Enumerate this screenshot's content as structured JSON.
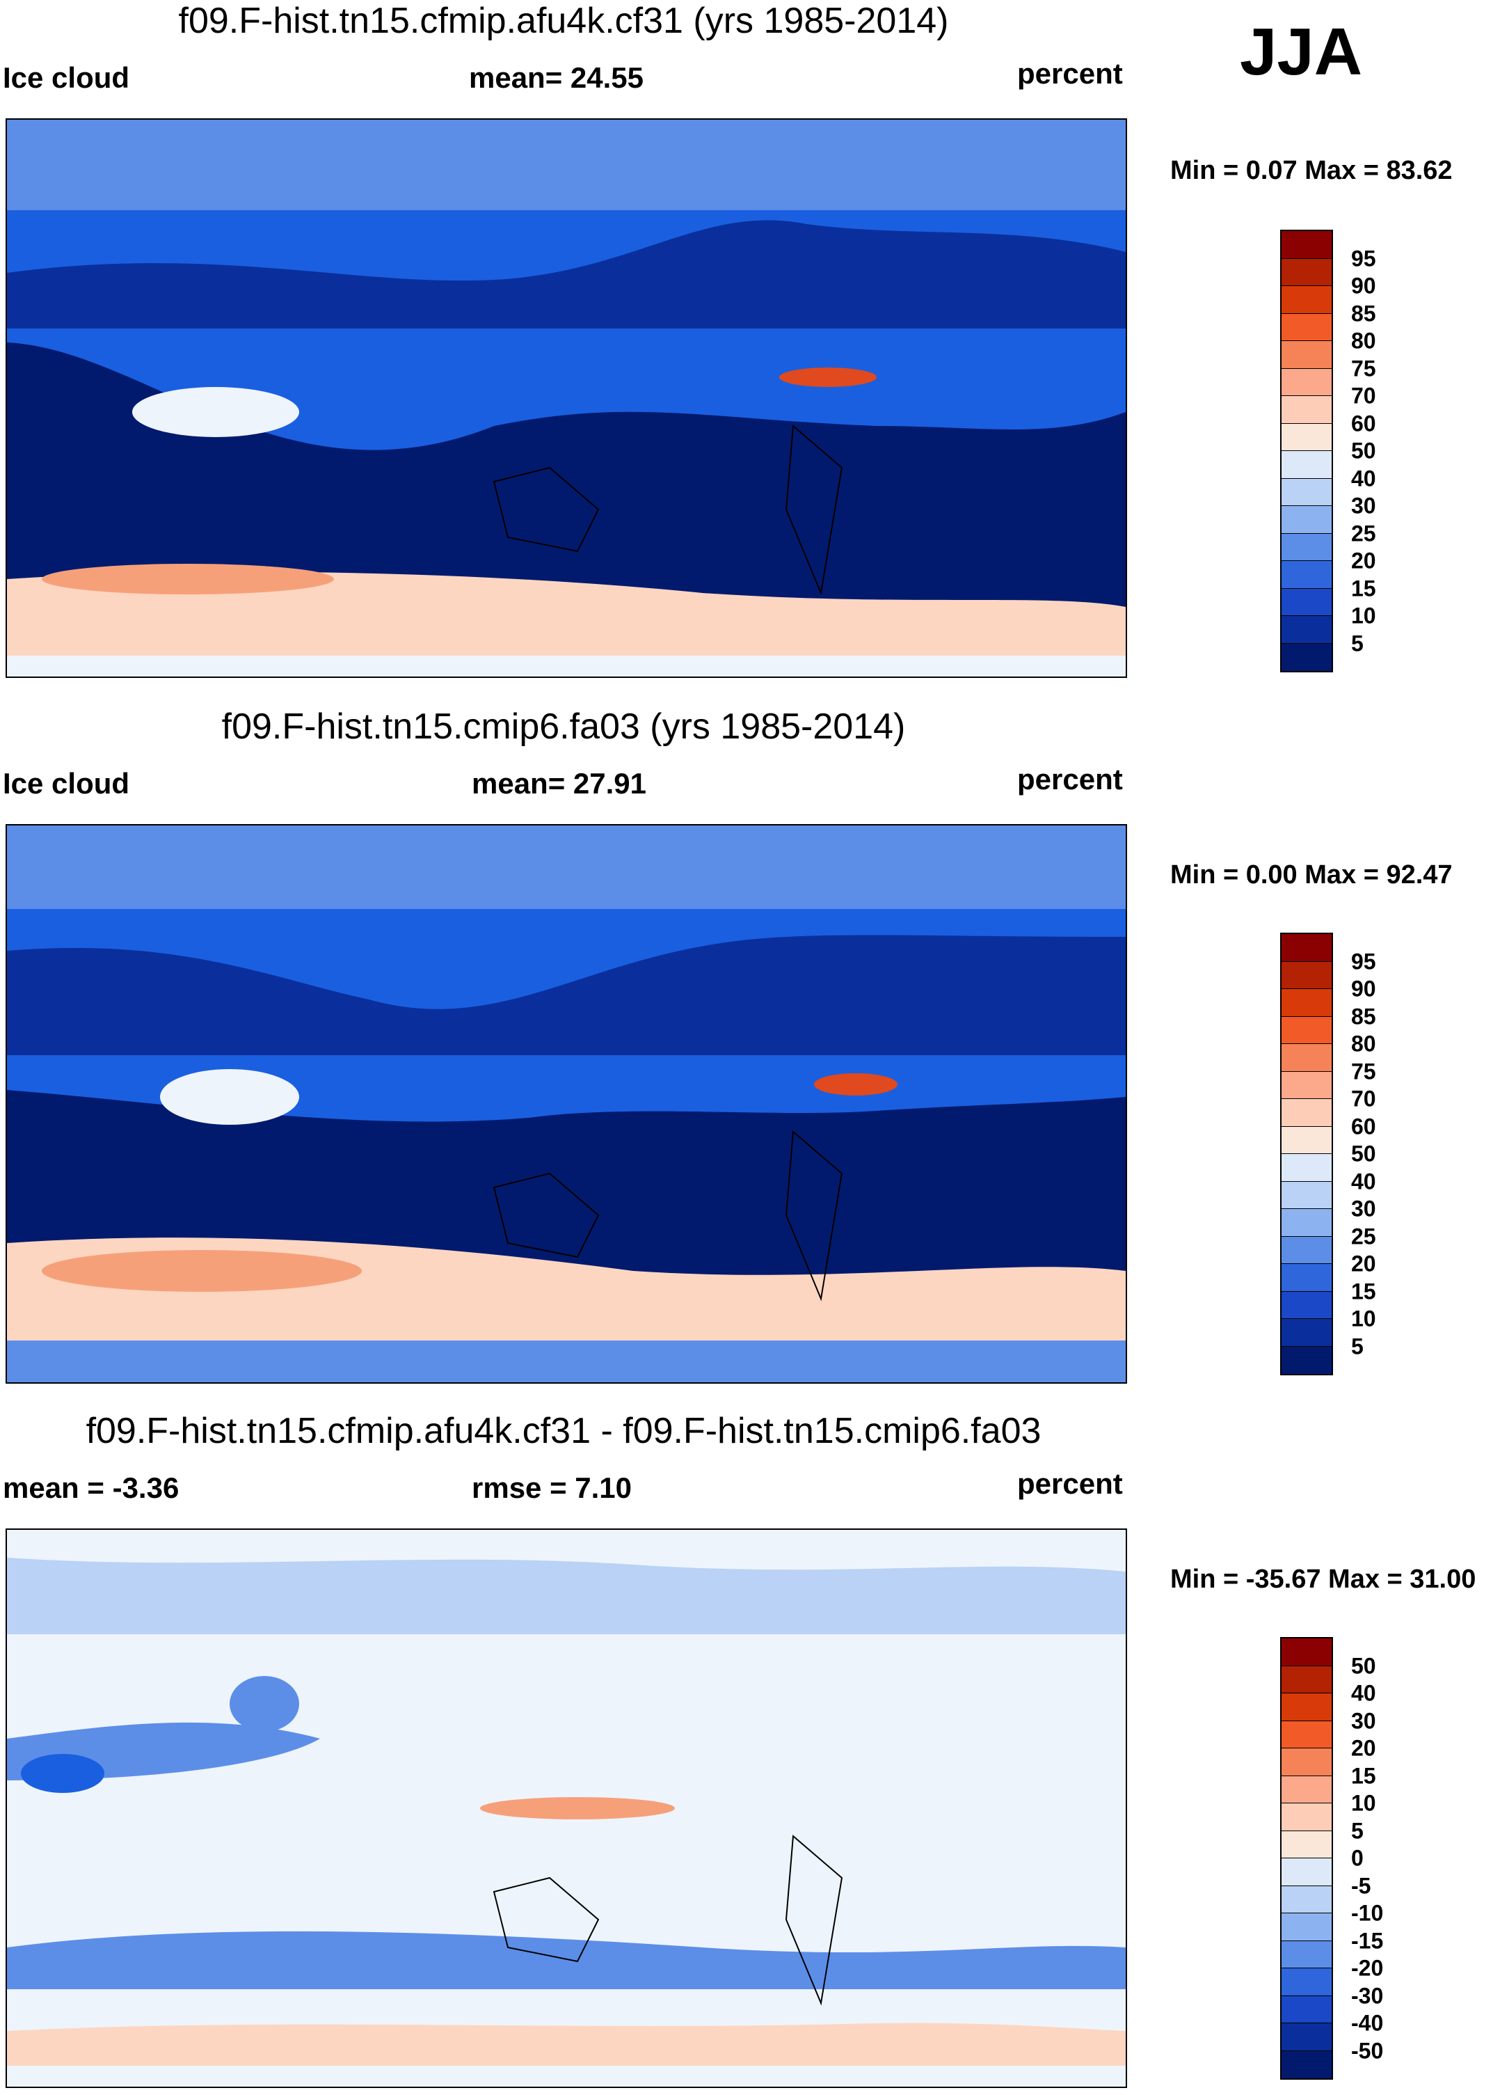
{
  "season_label": "JJA",
  "panels": [
    {
      "id": "model",
      "title": "f09.F-hist.tn15.cfmip.afu4k.cf31 (yrs 1985-2014)",
      "left_label": "Ice cloud",
      "center_label": "mean=  24.55",
      "units_label": "percent",
      "minmax": "Min =   0.07 Max =  83.62",
      "map_description": "ice cloud fraction, model run afu4k"
    },
    {
      "id": "reference",
      "title": "f09.F-hist.tn15.cmip6.fa03 (yrs 1985-2014)",
      "left_label": "Ice cloud",
      "center_label": "mean=  27.91",
      "units_label": "percent",
      "minmax": "Min =   0.00 Max =  92.47",
      "map_description": "ice cloud fraction, reference run fa03"
    },
    {
      "id": "difference",
      "title": "f09.F-hist.tn15.cfmip.afu4k.cf31 - f09.F-hist.tn15.cmip6.fa03",
      "left_label": "mean =  -3.36",
      "center_label": "rmse =    7.10",
      "units_label": "percent",
      "minmax": "Min = -35.67 Max =  31.00",
      "map_description": "difference, model minus reference"
    }
  ],
  "colorbars": {
    "absolute": {
      "ticks": [
        "95",
        "90",
        "85",
        "80",
        "75",
        "70",
        "60",
        "50",
        "40",
        "30",
        "25",
        "20",
        "15",
        "10",
        "5"
      ],
      "colors": [
        "#8b0000",
        "#b22203",
        "#d83a0a",
        "#f25a28",
        "#f68357",
        "#fba98a",
        "#fdcdb8",
        "#fbe7d9",
        "#dde9f8",
        "#b9d2f5",
        "#8cb3ef",
        "#5c8ee8",
        "#2f66dc",
        "#1a48c7",
        "#0a2f9c",
        "#021a6e"
      ]
    },
    "difference": {
      "ticks": [
        "50",
        "40",
        "30",
        "20",
        "15",
        "10",
        "5",
        "0",
        "-5",
        "-10",
        "-15",
        "-20",
        "-30",
        "-40",
        "-50"
      ],
      "colors": [
        "#8b0000",
        "#b22203",
        "#d83a0a",
        "#f25a28",
        "#f68357",
        "#fba98a",
        "#fdcdb8",
        "#fbe7d9",
        "#dde9f8",
        "#b9d2f5",
        "#8cb3ef",
        "#5c8ee8",
        "#2f66dc",
        "#1a48c7",
        "#0a2f9c",
        "#021a6e"
      ]
    }
  },
  "map_colors": {
    "deep": "#021a6e",
    "dark": "#0a2f9c",
    "mid": "#1a5fe0",
    "light": "#5c8ee8",
    "pale": "#b9d2f5",
    "white": "#eef4fc",
    "peach": "#fcd6c1",
    "salmon": "#f6a07a",
    "red": "#e04a1e",
    "coast": "#000000"
  }
}
